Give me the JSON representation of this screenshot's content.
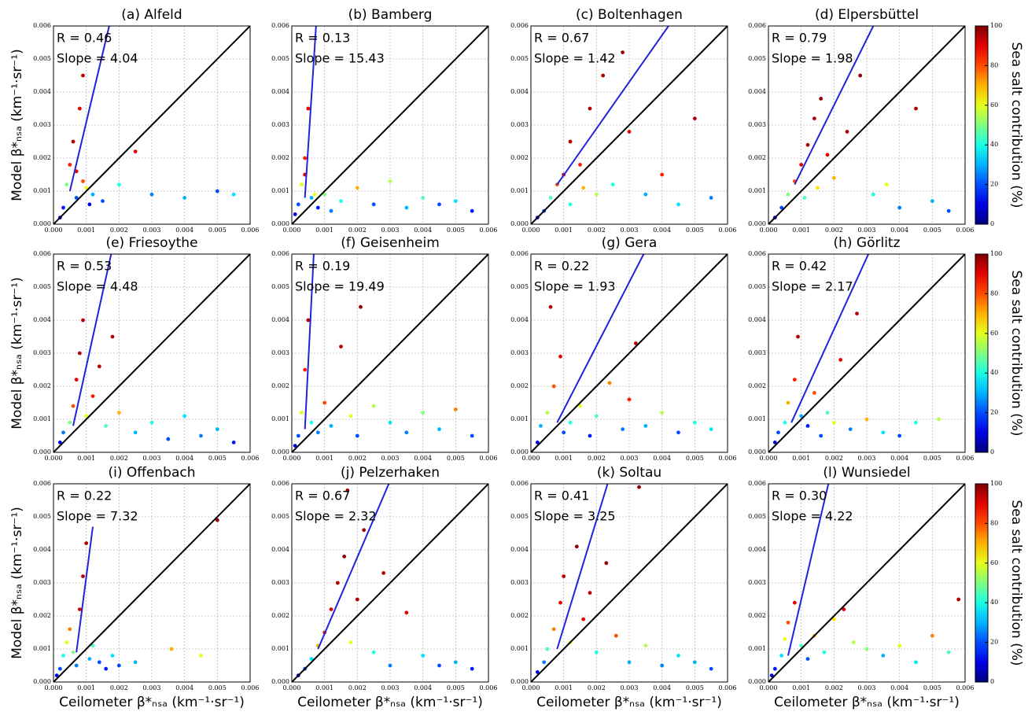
{
  "chart_data": {
    "type": "scatter",
    "ylabel": "Model β*ₙₛₐ (km⁻¹·sr⁻¹)",
    "xlabel": "Ceilometer β*ₙₛₐ (km⁻¹·sr⁻¹)",
    "xlim": [
      0,
      0.006
    ],
    "ylim": [
      0,
      0.006
    ],
    "grid": true,
    "xticks": [
      {
        "value": 0,
        "label": "0.000"
      },
      {
        "value": 0.001,
        "label": "0.001"
      },
      {
        "value": 0.002,
        "label": "0.002"
      },
      {
        "value": 0.003,
        "label": "0.003"
      },
      {
        "value": 0.004,
        "label": "0.004"
      },
      {
        "value": 0.005,
        "label": "0.005"
      },
      {
        "value": 0.006,
        "label": "0.006"
      }
    ],
    "yticks": [
      {
        "value": 0,
        "label": "0.000"
      },
      {
        "value": 0.001,
        "label": "0.001"
      },
      {
        "value": 0.002,
        "label": "0.002"
      },
      {
        "value": 0.003,
        "label": "0.003"
      },
      {
        "value": 0.004,
        "label": "0.004"
      },
      {
        "value": 0.005,
        "label": "0.005"
      },
      {
        "value": 0.006,
        "label": "0.006"
      }
    ],
    "colorbar": {
      "label": "Sea salt contribution (%)",
      "lim": [
        0,
        100
      ],
      "ticks": [
        0,
        20,
        40,
        60,
        80,
        100
      ]
    },
    "one_to_one": {
      "color": "#000000",
      "x": [
        0,
        0.006
      ],
      "values": [
        0,
        0.006
      ]
    },
    "fit_color": "#2222dd",
    "panels": [
      {
        "title": "(a) Alfeld",
        "annotations": [
          "R = 0.46",
          "Slope = 4.04"
        ],
        "fit": {
          "x": [
            0.0005,
            0.0017
          ],
          "values": [
            0.001,
            0.006
          ]
        },
        "x": [
          0.0002,
          0.0003,
          0.0004,
          0.0005,
          0.0006,
          0.0007,
          0.0008,
          0.0009,
          0.001,
          0.0012,
          0.0015,
          0.002,
          0.0025,
          0.003,
          0.004,
          0.005,
          0.0055,
          0.0007,
          0.0009,
          0.0011
        ],
        "values": [
          0.0002,
          0.0005,
          0.0012,
          0.0018,
          0.0025,
          0.0008,
          0.0035,
          0.0045,
          0.0011,
          0.0009,
          0.0007,
          0.0012,
          0.0022,
          0.0009,
          0.0008,
          0.001,
          0.0009,
          0.0016,
          0.0013,
          0.0006
        ],
        "c": [
          10,
          15,
          50,
          85,
          95,
          20,
          90,
          95,
          60,
          30,
          20,
          40,
          90,
          25,
          30,
          20,
          35,
          90,
          80,
          10
        ]
      },
      {
        "title": "(b) Bamberg",
        "annotations": [
          "R = 0.13",
          "Slope = 15.43"
        ],
        "fit": {
          "x": [
            0.0004,
            0.00074
          ],
          "values": [
            0.0008,
            0.006
          ]
        },
        "x": [
          0.0001,
          0.0002,
          0.0003,
          0.0004,
          0.0005,
          0.0006,
          0.0008,
          0.001,
          0.0012,
          0.0015,
          0.002,
          0.0025,
          0.003,
          0.0035,
          0.004,
          0.0045,
          0.005,
          0.0055,
          0.0004,
          0.0007
        ],
        "values": [
          0.0003,
          0.0006,
          0.0012,
          0.002,
          0.0035,
          0.0008,
          0.0005,
          0.0009,
          0.0004,
          0.0007,
          0.0011,
          0.0006,
          0.0013,
          0.0005,
          0.0008,
          0.0006,
          0.0007,
          0.0004,
          0.0015,
          0.0009
        ],
        "c": [
          10,
          20,
          60,
          85,
          90,
          30,
          15,
          50,
          25,
          40,
          70,
          20,
          55,
          30,
          45,
          20,
          35,
          15,
          90,
          60
        ]
      },
      {
        "title": "(c) Boltenhagen",
        "annotations": [
          "R = 0.67",
          "Slope = 1.42"
        ],
        "fit": {
          "x": [
            0.0008,
            0.0042
          ],
          "values": [
            0.0012,
            0.006
          ]
        },
        "x": [
          0.0002,
          0.0004,
          0.0006,
          0.0008,
          0.001,
          0.0012,
          0.0015,
          0.0018,
          0.002,
          0.0022,
          0.0025,
          0.003,
          0.0035,
          0.004,
          0.0045,
          0.005,
          0.0055,
          0.0012,
          0.0016,
          0.0028
        ],
        "values": [
          0.0002,
          0.0004,
          0.0008,
          0.0012,
          0.0015,
          0.0025,
          0.0018,
          0.0035,
          0.0009,
          0.0045,
          0.0012,
          0.0028,
          0.0009,
          0.0015,
          0.0006,
          0.0032,
          0.0008,
          0.0006,
          0.0011,
          0.0052
        ],
        "c": [
          10,
          20,
          45,
          80,
          90,
          95,
          85,
          95,
          55,
          95,
          40,
          90,
          30,
          85,
          35,
          95,
          25,
          40,
          70,
          98
        ]
      },
      {
        "title": "(d) Elpersbüttel",
        "annotations": [
          "R = 0.79",
          "Slope = 1.98"
        ],
        "fit": {
          "x": [
            0.0008,
            0.0032
          ],
          "values": [
            0.0012,
            0.006
          ]
        },
        "x": [
          0.0002,
          0.0004,
          0.0006,
          0.0008,
          0.001,
          0.0012,
          0.0014,
          0.0016,
          0.0018,
          0.002,
          0.0024,
          0.0028,
          0.0032,
          0.0036,
          0.004,
          0.0045,
          0.005,
          0.0055,
          0.0011,
          0.0015
        ],
        "values": [
          0.0002,
          0.0005,
          0.0009,
          0.0013,
          0.0018,
          0.0024,
          0.0032,
          0.0038,
          0.0021,
          0.0014,
          0.0028,
          0.0045,
          0.0009,
          0.0012,
          0.0005,
          0.0035,
          0.0007,
          0.0004,
          0.0008,
          0.0011
        ],
        "c": [
          10,
          20,
          50,
          80,
          90,
          95,
          95,
          98,
          90,
          70,
          95,
          98,
          40,
          60,
          25,
          95,
          30,
          20,
          45,
          65
        ]
      },
      {
        "title": "(e) Friesoythe",
        "annotations": [
          "R = 0.53",
          "Slope = 4.48"
        ],
        "fit": {
          "x": [
            0.0006,
            0.00176
          ],
          "values": [
            0.0008,
            0.006
          ]
        },
        "x": [
          0.0002,
          0.0003,
          0.0005,
          0.0006,
          0.0007,
          0.0008,
          0.0009,
          0.001,
          0.0012,
          0.0014,
          0.0016,
          0.0018,
          0.002,
          0.0025,
          0.003,
          0.0035,
          0.004,
          0.0045,
          0.005,
          0.0055
        ],
        "values": [
          0.0003,
          0.0006,
          0.0009,
          0.0014,
          0.0022,
          0.003,
          0.004,
          0.0011,
          0.0017,
          0.0026,
          0.0008,
          0.0035,
          0.0012,
          0.0006,
          0.0009,
          0.0004,
          0.0011,
          0.0005,
          0.0007,
          0.0003
        ],
        "c": [
          10,
          25,
          50,
          80,
          90,
          95,
          95,
          60,
          85,
          95,
          45,
          95,
          70,
          30,
          40,
          20,
          35,
          25,
          30,
          15
        ]
      },
      {
        "title": "(f) Geisenheim",
        "annotations": [
          "R = 0.19",
          "Slope = 19.49"
        ],
        "fit": {
          "x": [
            0.0004,
            0.00067
          ],
          "values": [
            0.0007,
            0.006
          ]
        },
        "x": [
          0.0001,
          0.0002,
          0.0003,
          0.0004,
          0.0005,
          0.0006,
          0.0008,
          0.001,
          0.0012,
          0.0015,
          0.0018,
          0.002,
          0.0025,
          0.003,
          0.0035,
          0.004,
          0.0045,
          0.005,
          0.0055,
          0.0021
        ],
        "values": [
          0.0002,
          0.0005,
          0.0012,
          0.0025,
          0.004,
          0.0009,
          0.0006,
          0.0015,
          0.0008,
          0.0032,
          0.0011,
          0.0005,
          0.0014,
          0.0009,
          0.0006,
          0.0012,
          0.0007,
          0.0013,
          0.0005,
          0.0044
        ],
        "c": [
          10,
          20,
          60,
          85,
          95,
          40,
          25,
          80,
          30,
          95,
          60,
          20,
          55,
          35,
          25,
          50,
          30,
          75,
          20,
          98
        ]
      },
      {
        "title": "(g) Gera",
        "annotations": [
          "R = 0.22",
          "Slope = 1.93"
        ],
        "fit": {
          "x": [
            0.0008,
            0.00344
          ],
          "values": [
            0.0009,
            0.006
          ]
        },
        "x": [
          0.0002,
          0.0003,
          0.0005,
          0.0007,
          0.0009,
          0.001,
          0.0012,
          0.0015,
          0.0018,
          0.002,
          0.0024,
          0.0028,
          0.003,
          0.0035,
          0.004,
          0.0045,
          0.005,
          0.0055,
          0.0006,
          0.0032
        ],
        "values": [
          0.0003,
          0.0008,
          0.0012,
          0.002,
          0.0029,
          0.0006,
          0.0009,
          0.0014,
          0.0005,
          0.0011,
          0.0021,
          0.0007,
          0.0016,
          0.0008,
          0.0012,
          0.0006,
          0.0009,
          0.0007,
          0.0044,
          0.0033
        ],
        "c": [
          10,
          30,
          55,
          80,
          90,
          20,
          40,
          60,
          15,
          45,
          75,
          25,
          85,
          30,
          55,
          20,
          40,
          35,
          95,
          95
        ]
      },
      {
        "title": "(h) Görlitz",
        "annotations": [
          "R = 0.42",
          "Slope = 2.17"
        ],
        "fit": {
          "x": [
            0.0007,
            0.00305
          ],
          "values": [
            0.0009,
            0.006
          ]
        },
        "x": [
          0.0002,
          0.0003,
          0.0005,
          0.0006,
          0.0008,
          0.001,
          0.0012,
          0.0014,
          0.0016,
          0.0018,
          0.002,
          0.0022,
          0.0025,
          0.003,
          0.0035,
          0.004,
          0.0045,
          0.0052,
          0.0009,
          0.0027
        ],
        "values": [
          0.0003,
          0.0006,
          0.0009,
          0.0015,
          0.0022,
          0.0011,
          0.0008,
          0.0018,
          0.0005,
          0.0012,
          0.0009,
          0.0028,
          0.0007,
          0.001,
          0.0006,
          0.0005,
          0.0009,
          0.001,
          0.0035,
          0.0042
        ],
        "c": [
          10,
          20,
          40,
          70,
          85,
          30,
          15,
          80,
          20,
          45,
          60,
          90,
          25,
          70,
          35,
          20,
          40,
          55,
          95,
          95
        ]
      },
      {
        "title": "(i) Offenbach",
        "annotations": [
          "R = 0.22",
          "Slope = 7.32"
        ],
        "fit": {
          "x": [
            0.0007,
            0.0012
          ],
          "values": [
            0.0009,
            0.0047
          ]
        },
        "x": [
          0.0001,
          0.0002,
          0.0003,
          0.0004,
          0.0005,
          0.0006,
          0.0007,
          0.0008,
          0.0009,
          0.001,
          0.0011,
          0.0012,
          0.0014,
          0.0016,
          0.0018,
          0.002,
          0.0025,
          0.0036,
          0.0045,
          0.005
        ],
        "values": [
          0.0002,
          0.0004,
          0.0008,
          0.0012,
          0.0016,
          0.0009,
          0.0005,
          0.0022,
          0.0032,
          0.0042,
          0.0007,
          0.0011,
          0.0006,
          0.0004,
          0.0008,
          0.0005,
          0.0006,
          0.001,
          0.0008,
          0.0049
        ],
        "c": [
          10,
          20,
          40,
          60,
          75,
          50,
          25,
          90,
          95,
          95,
          30,
          45,
          20,
          15,
          35,
          20,
          30,
          70,
          60,
          98
        ]
      },
      {
        "title": "(j) Pelzerhaken",
        "annotations": [
          "R = 0.67",
          "Slope = 2.32"
        ],
        "fit": {
          "x": [
            0.0008,
            0.00296
          ],
          "values": [
            0.001,
            0.006
          ]
        },
        "x": [
          0.0002,
          0.0004,
          0.0006,
          0.0008,
          0.001,
          0.0012,
          0.0014,
          0.0016,
          0.0018,
          0.002,
          0.0022,
          0.0025,
          0.0028,
          0.003,
          0.0035,
          0.004,
          0.0045,
          0.005,
          0.0055,
          0.0017
        ],
        "values": [
          0.0002,
          0.0004,
          0.0007,
          0.0011,
          0.0015,
          0.0022,
          0.003,
          0.0038,
          0.0012,
          0.0025,
          0.0046,
          0.0009,
          0.0033,
          0.0005,
          0.0021,
          0.0008,
          0.0005,
          0.0006,
          0.0004,
          0.0058
        ],
        "c": [
          10,
          20,
          35,
          70,
          85,
          90,
          95,
          98,
          60,
          95,
          98,
          40,
          95,
          25,
          90,
          35,
          20,
          30,
          15,
          98
        ]
      },
      {
        "title": "(k) Soltau",
        "annotations": [
          "R = 0.41",
          "Slope = 3.25"
        ],
        "fit": {
          "x": [
            0.0008,
            0.00234
          ],
          "values": [
            0.001,
            0.006
          ]
        },
        "x": [
          0.0002,
          0.0004,
          0.0005,
          0.0007,
          0.0009,
          0.001,
          0.0012,
          0.0014,
          0.0016,
          0.0018,
          0.002,
          0.0023,
          0.0026,
          0.003,
          0.0035,
          0.004,
          0.0045,
          0.005,
          0.0055,
          0.0033
        ],
        "values": [
          0.0003,
          0.0006,
          0.001,
          0.0016,
          0.0024,
          0.0032,
          0.0012,
          0.0041,
          0.0019,
          0.0027,
          0.0009,
          0.0036,
          0.0014,
          0.0006,
          0.0011,
          0.0005,
          0.0008,
          0.0006,
          0.0004,
          0.0059
        ],
        "c": [
          10,
          25,
          45,
          75,
          90,
          95,
          60,
          98,
          90,
          95,
          40,
          98,
          80,
          30,
          55,
          25,
          35,
          30,
          20,
          98
        ]
      },
      {
        "title": "(l) Wunsiedel",
        "annotations": [
          "R = 0.30",
          "Slope = 4.22"
        ],
        "fit": {
          "x": [
            0.0006,
            0.00183
          ],
          "values": [
            0.0008,
            0.006
          ]
        },
        "x": [
          0.0001,
          0.0002,
          0.0004,
          0.0005,
          0.0006,
          0.0008,
          0.001,
          0.0012,
          0.0014,
          0.0017,
          0.002,
          0.0023,
          0.0026,
          0.003,
          0.0035,
          0.004,
          0.0045,
          0.005,
          0.0055,
          0.0058
        ],
        "values": [
          0.0002,
          0.0004,
          0.0008,
          0.0013,
          0.0018,
          0.0024,
          0.0011,
          0.0007,
          0.0014,
          0.0009,
          0.0019,
          0.0022,
          0.0012,
          0.001,
          0.0008,
          0.0011,
          0.0006,
          0.0014,
          0.0009,
          0.0025
        ],
        "c": [
          10,
          15,
          35,
          60,
          80,
          90,
          45,
          20,
          70,
          40,
          65,
          90,
          55,
          50,
          30,
          60,
          35,
          75,
          45,
          95
        ]
      }
    ]
  }
}
